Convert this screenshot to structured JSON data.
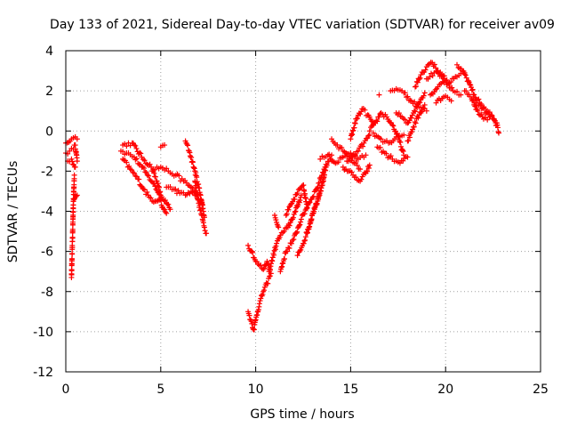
{
  "chart_data": {
    "type": "scatter",
    "title": "Day 133 of 2021, Sidereal Day-to-day VTEC variation (SDTVAR) for receiver av09",
    "xlabel": "GPS time / hours",
    "ylabel": "SDTVAR / TECUs",
    "xlim": [
      0,
      25
    ],
    "ylim": [
      -12,
      4
    ],
    "x_ticks": [
      0,
      5,
      10,
      15,
      20,
      25
    ],
    "y_ticks": [
      -12,
      -10,
      -8,
      -6,
      -4,
      -2,
      0,
      2,
      4
    ],
    "x_tick_labels": [
      "0",
      "5",
      "10",
      "15",
      "20",
      "25"
    ],
    "y_tick_labels": [
      "-12",
      "-10",
      "-8",
      "-6",
      "-4",
      "-2",
      "0",
      "2",
      "4"
    ],
    "grid": true,
    "marker": "plus",
    "color": "#ff0000",
    "series": [
      {
        "name": "t0a",
        "x": [
          0.0,
          0.2,
          0.4,
          0.5,
          0.6
        ],
        "y": [
          -1.1,
          -1.0,
          -0.9,
          -0.7,
          -1.5
        ]
      },
      {
        "name": "t0b",
        "x": [
          0.0,
          0.3,
          0.6
        ],
        "y": [
          -0.6,
          -0.4,
          -0.4
        ]
      },
      {
        "name": "t0c",
        "x": [
          0.1,
          0.3,
          0.5
        ],
        "y": [
          -1.5,
          -1.4,
          -1.8
        ]
      },
      {
        "name": "t0d",
        "x": [
          0.3,
          0.35,
          0.4,
          0.45
        ],
        "y": [
          -7.3,
          -5.5,
          -3.5,
          -2.2
        ]
      },
      {
        "name": "t0e",
        "x": [
          0.4,
          0.5,
          0.6
        ],
        "y": [
          -3.5,
          -3.2,
          -3.2
        ]
      },
      {
        "name": "t1",
        "x": [
          2.9,
          3.2,
          3.6,
          4.0,
          4.3,
          4.6,
          4.9,
          5.1,
          5.3
        ],
        "y": [
          -1.0,
          -1.1,
          -1.3,
          -1.8,
          -2.2,
          -2.6,
          -3.1,
          -3.8,
          -4.1
        ]
      },
      {
        "name": "t2",
        "x": [
          3.0,
          3.5,
          4.0,
          4.5,
          4.8,
          5.0,
          5.3,
          5.5
        ],
        "y": [
          -0.7,
          -0.6,
          -1.3,
          -1.8,
          -2.5,
          -3.2,
          -3.6,
          -3.9
        ]
      },
      {
        "name": "t3",
        "x": [
          3.0,
          3.4,
          3.8,
          4.1,
          4.4,
          4.7,
          5.0
        ],
        "y": [
          -1.4,
          -1.9,
          -2.4,
          -2.9,
          -3.3,
          -3.5,
          -3.3
        ]
      },
      {
        "name": "t4",
        "x": [
          4.6,
          5.0,
          5.4,
          5.8,
          6.2,
          6.6,
          6.9
        ],
        "y": [
          -1.9,
          -1.8,
          -2.0,
          -2.2,
          -2.5,
          -2.8,
          -3.1
        ]
      },
      {
        "name": "t5",
        "x": [
          5.3,
          5.7,
          6.0,
          6.3,
          6.6,
          7.0,
          7.2
        ],
        "y": [
          -2.8,
          -2.9,
          -3.1,
          -3.2,
          -3.0,
          -3.4,
          -3.7
        ]
      },
      {
        "name": "t6",
        "x": [
          6.3,
          6.5,
          6.8,
          7.1,
          7.3
        ],
        "y": [
          -0.5,
          -1.0,
          -2.0,
          -3.2,
          -4.3
        ]
      },
      {
        "name": "t7",
        "x": [
          6.8,
          7.0,
          7.2,
          7.3,
          7.4
        ],
        "y": [
          -2.5,
          -3.6,
          -4.4,
          -4.8,
          -5.1
        ]
      },
      {
        "name": "t8",
        "x": [
          5.0,
          5.2
        ],
        "y": [
          -0.8,
          -0.7
        ]
      },
      {
        "name": "t9",
        "x": [
          9.6,
          9.8,
          10.0,
          10.2,
          10.4,
          10.6,
          10.8
        ],
        "y": [
          -5.7,
          -6.0,
          -6.5,
          -6.7,
          -6.9,
          -6.5,
          -7.1
        ]
      },
      {
        "name": "t10",
        "x": [
          9.6,
          9.8,
          9.9,
          10.0,
          10.2,
          10.4,
          10.6,
          10.8
        ],
        "y": [
          -9.0,
          -9.6,
          -9.9,
          -9.4,
          -8.6,
          -8.0,
          -7.6,
          -7.1
        ]
      },
      {
        "name": "t11",
        "x": [
          10.7,
          10.9,
          11.1,
          11.3,
          11.5,
          11.7,
          11.9,
          12.1,
          12.4
        ],
        "y": [
          -7.0,
          -6.3,
          -5.6,
          -5.2,
          -5.0,
          -4.8,
          -4.4,
          -4.0,
          -3.2
        ]
      },
      {
        "name": "t12",
        "x": [
          11.3,
          11.6,
          12.0,
          12.4,
          12.8,
          13.2,
          13.6,
          14.0
        ],
        "y": [
          -7.0,
          -6.0,
          -5.4,
          -4.4,
          -3.6,
          -2.9,
          -1.9,
          -1.2
        ]
      },
      {
        "name": "t13",
        "x": [
          11.0,
          11.2
        ],
        "y": [
          -4.2,
          -4.8
        ]
      },
      {
        "name": "t14",
        "x": [
          11.6,
          11.9,
          12.2,
          12.5,
          12.7
        ],
        "y": [
          -4.2,
          -3.6,
          -3.1,
          -2.7,
          -3.8
        ]
      },
      {
        "name": "t15",
        "x": [
          12.2,
          12.5,
          12.8,
          13.0,
          13.2,
          13.4,
          13.6
        ],
        "y": [
          -6.2,
          -5.6,
          -4.8,
          -4.1,
          -3.6,
          -3.0,
          -2.3
        ]
      },
      {
        "name": "t16",
        "x": [
          12.7,
          12.9,
          13.1,
          13.3,
          13.5,
          13.7
        ],
        "y": [
          -5.1,
          -4.5,
          -3.9,
          -3.4,
          -2.6,
          -1.8
        ]
      },
      {
        "name": "t17",
        "x": [
          13.4,
          13.8,
          14.2,
          14.6,
          15.0,
          15.4,
          15.8
        ],
        "y": [
          -1.4,
          -1.2,
          -1.6,
          -1.3,
          -1.1,
          -1.4,
          -1.2
        ]
      },
      {
        "name": "t18",
        "x": [
          14.0,
          14.3,
          14.6,
          14.9,
          15.2,
          15.5
        ],
        "y": [
          -0.4,
          -0.7,
          -1.0,
          -1.3,
          -1.6,
          -1.9
        ]
      },
      {
        "name": "t19",
        "x": [
          14.6,
          14.9,
          15.2,
          15.5,
          15.8,
          16.0
        ],
        "y": [
          -1.8,
          -2.0,
          -2.3,
          -2.5,
          -2.1,
          -1.7
        ]
      },
      {
        "name": "t20",
        "x": [
          15.0,
          15.3,
          15.6,
          15.9,
          16.2
        ],
        "y": [
          -0.4,
          0.6,
          1.1,
          0.8,
          0.3
        ]
      },
      {
        "name": "t21",
        "x": [
          14.8,
          15.1,
          15.4,
          15.7,
          16.0
        ],
        "y": [
          -1.5,
          -1.3,
          -1.0,
          -0.6,
          -0.2
        ]
      },
      {
        "name": "t22",
        "x": [
          16.0,
          16.3,
          16.6,
          16.9,
          17.2,
          17.5,
          17.8
        ],
        "y": [
          0.0,
          0.4,
          0.9,
          0.7,
          0.3,
          -0.3,
          -1.2
        ]
      },
      {
        "name": "t23",
        "x": [
          16.4,
          16.8,
          17.2,
          17.6,
          18.0
        ],
        "y": [
          -0.8,
          -1.1,
          -1.4,
          -1.6,
          -1.3
        ]
      },
      {
        "name": "t24",
        "x": [
          17.4,
          17.7,
          18.0,
          18.3,
          18.6,
          18.9
        ],
        "y": [
          0.9,
          0.7,
          0.4,
          0.9,
          1.4,
          1.9
        ]
      },
      {
        "name": "t25",
        "x": [
          16.2,
          16.6,
          17.0,
          17.4,
          17.8
        ],
        "y": [
          -0.1,
          -0.4,
          -0.6,
          -0.3,
          -0.2
        ]
      },
      {
        "name": "t26",
        "x": [
          16.5
        ],
        "y": [
          1.8
        ]
      },
      {
        "name": "t27",
        "x": [
          18.0,
          18.3,
          18.6,
          18.9
        ],
        "y": [
          -0.5,
          0.2,
          0.8,
          1.3
        ]
      },
      {
        "name": "t28",
        "x": [
          17.1,
          17.4,
          17.8,
          18.2,
          18.6,
          19.0
        ],
        "y": [
          2.0,
          2.1,
          1.9,
          1.5,
          1.2,
          1.0
        ]
      },
      {
        "name": "t29",
        "x": [
          18.4,
          18.7,
          19.0,
          19.3,
          19.6,
          19.9
        ],
        "y": [
          2.2,
          2.8,
          3.2,
          3.4,
          3.0,
          2.6
        ]
      },
      {
        "name": "t30",
        "x": [
          19.0,
          19.4,
          19.8,
          20.2,
          20.6,
          21.0
        ],
        "y": [
          2.6,
          2.9,
          2.8,
          2.4,
          2.7,
          2.9
        ]
      },
      {
        "name": "t31",
        "x": [
          19.2,
          19.6,
          20.0,
          20.4,
          20.8
        ],
        "y": [
          1.8,
          2.2,
          2.5,
          2.0,
          1.8
        ]
      },
      {
        "name": "t32",
        "x": [
          19.5,
          19.9,
          20.3
        ],
        "y": [
          1.4,
          1.7,
          1.5
        ]
      },
      {
        "name": "t33",
        "x": [
          20.6,
          20.9,
          21.2,
          21.5,
          21.8,
          22.1,
          22.4,
          22.7,
          22.8
        ],
        "y": [
          3.3,
          3.0,
          2.5,
          1.8,
          1.4,
          1.1,
          0.8,
          0.3,
          -0.1
        ]
      },
      {
        "name": "t34",
        "x": [
          21.0,
          21.3,
          21.6,
          21.9,
          22.2,
          22.5,
          22.7
        ],
        "y": [
          2.0,
          1.7,
          1.4,
          1.1,
          0.9,
          0.6,
          0.4
        ]
      },
      {
        "name": "t35",
        "x": [
          21.4,
          21.7,
          22.0,
          22.3
        ],
        "y": [
          1.5,
          1.0,
          0.6,
          0.7
        ]
      }
    ]
  }
}
